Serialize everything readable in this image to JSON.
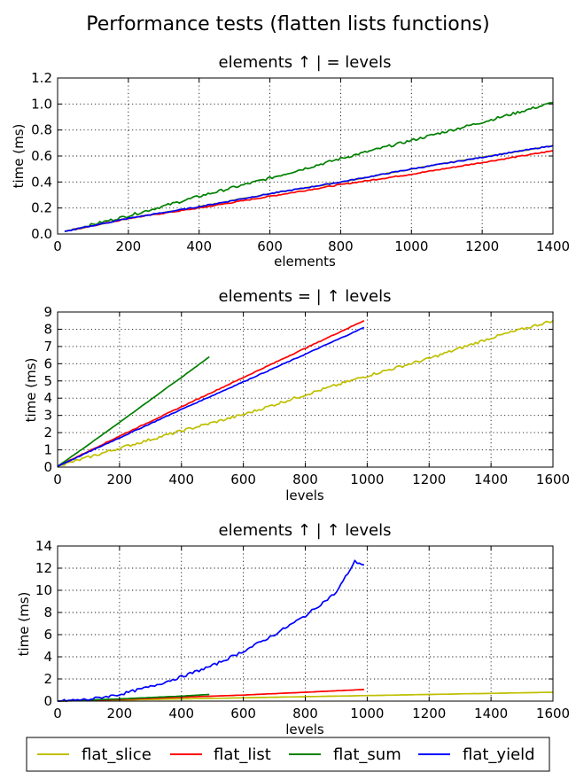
{
  "figure_title": "Performance tests (flatten lists functions)",
  "colors": {
    "flat_slice": "#bfbf00",
    "flat_list": "#ff0000",
    "flat_sum": "#008000",
    "flat_yield": "#0000ff"
  },
  "legend": {
    "placement": "bottom",
    "entries": [
      "flat_slice",
      "flat_list",
      "flat_sum",
      "flat_yield"
    ]
  },
  "chart_data": [
    {
      "type": "line",
      "title": "elements ↑ | = levels",
      "xlabel": "elements",
      "ylabel": "time (ms)",
      "xlim": [
        0,
        1400
      ],
      "ylim": [
        0,
        1.2
      ],
      "xticks": [
        0,
        200,
        400,
        600,
        800,
        1000,
        1200,
        1400
      ],
      "yticks": [
        0.0,
        0.2,
        0.4,
        0.6,
        0.8,
        1.0,
        1.2
      ],
      "tick_decimals": 1,
      "grid": true,
      "series": [
        {
          "name": "flat_slice",
          "x": [
            20,
            200,
            400,
            600,
            800,
            1000,
            1200,
            1400
          ],
          "y": [
            0.02,
            0.12,
            0.21,
            0.31,
            0.4,
            0.5,
            0.59,
            0.68
          ],
          "noise": 0.004
        },
        {
          "name": "flat_list",
          "x": [
            20,
            200,
            400,
            600,
            800,
            1000,
            1200,
            1400
          ],
          "y": [
            0.02,
            0.12,
            0.2,
            0.29,
            0.38,
            0.46,
            0.55,
            0.64
          ],
          "noise": 0.004
        },
        {
          "name": "flat_sum",
          "x": [
            20,
            200,
            400,
            600,
            800,
            1000,
            1200,
            1400
          ],
          "y": [
            0.02,
            0.14,
            0.29,
            0.43,
            0.58,
            0.72,
            0.86,
            1.01
          ],
          "noise": 0.01
        },
        {
          "name": "flat_yield",
          "x": [
            20,
            200,
            400,
            600,
            800,
            1000,
            1200,
            1400
          ],
          "y": [
            0.02,
            0.12,
            0.21,
            0.31,
            0.4,
            0.5,
            0.59,
            0.68
          ],
          "noise": 0.004
        }
      ]
    },
    {
      "type": "line",
      "title": "elements = | ↑ levels",
      "xlabel": "levels",
      "ylabel": "time (ms)",
      "xlim": [
        0,
        1600
      ],
      "ylim": [
        0,
        9
      ],
      "xticks": [
        0,
        200,
        400,
        600,
        800,
        1000,
        1200,
        1400,
        1600
      ],
      "yticks": [
        0,
        1,
        2,
        3,
        4,
        5,
        6,
        7,
        8,
        9
      ],
      "tick_decimals": 0,
      "grid": true,
      "series": [
        {
          "name": "flat_slice",
          "x": [
            0,
            200,
            400,
            600,
            800,
            1000,
            1200,
            1400,
            1600
          ],
          "y": [
            0.05,
            1.1,
            2.1,
            3.05,
            4.2,
            5.3,
            6.3,
            7.5,
            8.5
          ],
          "noise": 0.08
        },
        {
          "name": "flat_list",
          "x": [
            0,
            200,
            400,
            600,
            800,
            990
          ],
          "y": [
            0.05,
            1.8,
            3.5,
            5.2,
            6.9,
            8.5
          ],
          "noise": 0.02
        },
        {
          "name": "flat_sum",
          "x": [
            0,
            100,
            200,
            300,
            360,
            400,
            490
          ],
          "y": [
            0.05,
            1.3,
            2.6,
            3.9,
            4.7,
            5.2,
            6.4
          ],
          "noise": 0.01
        },
        {
          "name": "flat_yield",
          "x": [
            0,
            200,
            400,
            600,
            800,
            990
          ],
          "y": [
            0.05,
            1.7,
            3.35,
            4.95,
            6.55,
            8.1
          ],
          "noise": 0.02
        }
      ]
    },
    {
      "type": "line",
      "title": "elements ↑ | ↑ levels",
      "xlabel": "levels",
      "ylabel": "time (ms)",
      "xlim": [
        0,
        1600
      ],
      "ylim": [
        0,
        14
      ],
      "xticks": [
        0,
        200,
        400,
        600,
        800,
        1000,
        1200,
        1400,
        1600
      ],
      "yticks": [
        0,
        2,
        4,
        6,
        8,
        10,
        12,
        14
      ],
      "tick_decimals": 0,
      "grid": true,
      "series": [
        {
          "name": "flat_slice",
          "x": [
            0,
            400,
            800,
            1200,
            1600
          ],
          "y": [
            0.0,
            0.2,
            0.4,
            0.6,
            0.8
          ],
          "noise": 0.005
        },
        {
          "name": "flat_list",
          "x": [
            0,
            200,
            400,
            600,
            800,
            990
          ],
          "y": [
            0.0,
            0.15,
            0.35,
            0.55,
            0.8,
            1.05
          ],
          "noise": 0.005
        },
        {
          "name": "flat_sum",
          "x": [
            0,
            200,
            400,
            490
          ],
          "y": [
            0.0,
            0.2,
            0.45,
            0.6
          ],
          "noise": 0.005
        },
        {
          "name": "flat_yield",
          "x": [
            0,
            100,
            200,
            300,
            400,
            500,
            600,
            700,
            800,
            900,
            960,
            990
          ],
          "y": [
            0.0,
            0.15,
            0.6,
            1.3,
            2.2,
            3.2,
            4.5,
            6.0,
            7.7,
            9.8,
            12.6,
            12.3
          ],
          "noise": 0.12
        }
      ]
    }
  ]
}
